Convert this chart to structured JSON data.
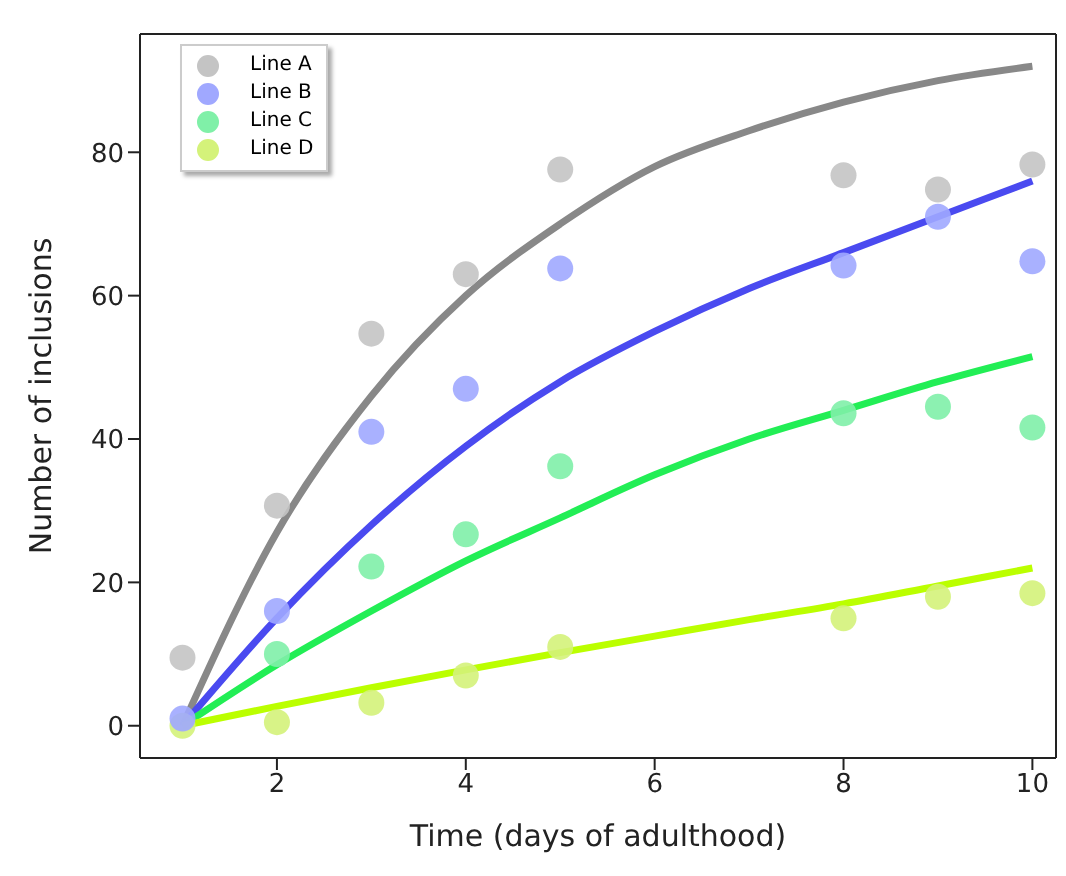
{
  "chart_data": {
    "type": "scatter",
    "xlabel": "Time (days of adulthood)",
    "ylabel": "Number of inclusions",
    "x": [
      1,
      2,
      3,
      4,
      5,
      8,
      9,
      10
    ],
    "series": [
      {
        "name": "Line A",
        "color": "#c4c4c4",
        "marker": "circle",
        "values": [
          9.5,
          30.7,
          54.7,
          63,
          77.6,
          76.8,
          74.8,
          78.3
        ]
      },
      {
        "name": "Line B",
        "color": "#a0a8ff",
        "marker": "circle",
        "values": [
          1,
          16,
          41,
          47,
          63.8,
          64.2,
          71,
          64.8
        ]
      },
      {
        "name": "Line C",
        "color": "#80f0a8",
        "marker": "circle",
        "values": [
          null,
          10,
          22.2,
          26.7,
          36.2,
          43.6,
          44.5,
          41.6
        ]
      },
      {
        "name": "Line D",
        "color": "#d4f27a",
        "marker": "circle",
        "values": [
          0,
          0.5,
          3.2,
          7,
          11,
          15,
          18,
          18.5
        ]
      },
      {
        "type": "line",
        "color": "#888888",
        "marker": "none",
        "x": [
          1,
          2,
          3,
          4,
          5,
          6,
          7,
          8,
          9,
          10
        ],
        "values": [
          0,
          27,
          46,
          60,
          70,
          78,
          83,
          87,
          90,
          92
        ]
      },
      {
        "type": "line",
        "color": "#4a4af0",
        "marker": "none",
        "x": [
          1,
          2,
          3,
          4,
          5,
          6,
          7,
          8,
          9,
          10
        ],
        "values": [
          0,
          15,
          28,
          39,
          48,
          55,
          61,
          66,
          71,
          76
        ]
      },
      {
        "type": "line",
        "color": "#22ee55",
        "marker": "none",
        "x": [
          1,
          2,
          3,
          4,
          5,
          6,
          7,
          8,
          9,
          10
        ],
        "values": [
          0,
          8.5,
          16,
          23,
          29,
          35,
          40,
          44,
          48,
          51.5
        ]
      },
      {
        "type": "line",
        "color": "#bbff00",
        "marker": "none",
        "x": [
          1,
          2,
          3,
          4,
          5,
          6,
          7,
          8,
          9,
          10
        ],
        "values": [
          0,
          2.7,
          5.3,
          7.8,
          10.2,
          12.5,
          14.8,
          17,
          19.5,
          22
        ]
      }
    ],
    "xlim": [
      0.55,
      10.25
    ],
    "ylim": [
      -4.5,
      96.5
    ],
    "xticks": [
      2,
      4,
      6,
      8,
      10
    ],
    "yticks": [
      0,
      20,
      40,
      60,
      80
    ],
    "grid": false,
    "legend": "top left",
    "line_style": "solid"
  }
}
